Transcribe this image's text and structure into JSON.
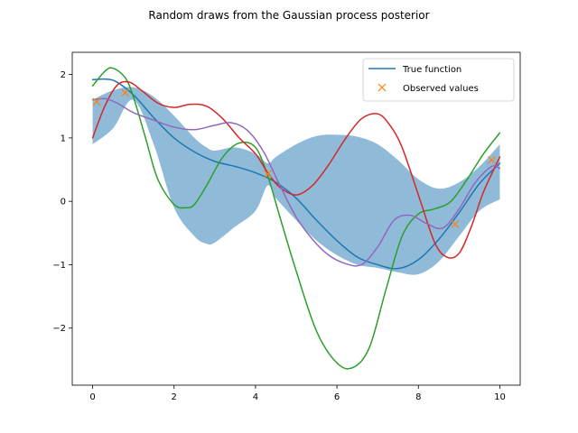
{
  "chart_data": {
    "type": "line",
    "title": "Random draws from the Gaussian process posterior",
    "xlabel": "",
    "ylabel": "",
    "xlim": [
      -0.5,
      10.5
    ],
    "ylim": [
      -2.9,
      2.35
    ],
    "xticks": [
      0,
      2,
      4,
      6,
      8,
      10
    ],
    "xtick_labels": [
      "0",
      "2",
      "4",
      "6",
      "8",
      "10"
    ],
    "yticks": [
      -2,
      -1,
      0,
      1,
      2
    ],
    "ytick_labels": [
      "−2",
      "−1",
      "0",
      "1",
      "2"
    ],
    "grid": false,
    "legend": {
      "position": "upper right",
      "entries": [
        "True function",
        "Observed values"
      ]
    },
    "colors": {
      "true_function": "#1f77b4",
      "observed": "#ff7f0e",
      "band": "#8fbbd9",
      "sample_1": "#2ca02c",
      "sample_2": "#d62728",
      "sample_3": "#9467bd"
    },
    "band": {
      "x": [
        0,
        0.5,
        1.0,
        1.5,
        2.0,
        2.5,
        2.8,
        3.0,
        3.5,
        4.0,
        4.3,
        4.5,
        5.0,
        5.5,
        6.0,
        6.5,
        7.0,
        7.5,
        8.0,
        8.5,
        9.0,
        9.5,
        10.0
      ],
      "upper": [
        1.6,
        1.75,
        1.8,
        1.65,
        1.35,
        1.0,
        0.85,
        0.8,
        0.85,
        0.75,
        0.6,
        0.7,
        0.9,
        1.03,
        1.05,
        1.02,
        0.9,
        0.65,
        0.35,
        0.2,
        0.3,
        0.55,
        0.9
      ],
      "lower": [
        0.9,
        1.15,
        1.6,
        0.9,
        -0.1,
        -0.55,
        -0.67,
        -0.65,
        -0.4,
        -0.15,
        0.25,
        0.05,
        -0.3,
        -0.62,
        -0.85,
        -1.0,
        -1.05,
        -1.12,
        -1.15,
        -0.95,
        -0.55,
        -0.15,
        0.03
      ]
    },
    "series": [
      {
        "name": "True function",
        "style": "line",
        "x": [
          0,
          0.5,
          1.0,
          1.5,
          2.0,
          2.5,
          3.0,
          3.5,
          4.0,
          4.5,
          5.0,
          5.5,
          6.0,
          6.5,
          7.0,
          7.5,
          8.0,
          8.5,
          9.0,
          9.5,
          10.0
        ],
        "y": [
          1.92,
          1.91,
          1.68,
          1.32,
          1.0,
          0.78,
          0.63,
          0.55,
          0.45,
          0.3,
          0.05,
          -0.3,
          -0.62,
          -0.88,
          -1.0,
          -1.06,
          -0.92,
          -0.6,
          -0.18,
          0.28,
          0.6
        ]
      },
      {
        "name": "Observed values",
        "style": "marker",
        "x": [
          0.1,
          0.8,
          4.3,
          8.9,
          9.8
        ],
        "y": [
          1.57,
          1.71,
          0.43,
          -0.36,
          0.65
        ]
      },
      {
        "style": "line",
        "x": [
          0,
          0.3,
          0.5,
          0.8,
          1.0,
          1.3,
          1.6,
          2.0,
          2.3,
          2.5,
          2.8,
          3.2,
          3.6,
          4.0,
          4.3,
          4.6,
          5.0,
          5.5,
          6.0,
          6.4,
          6.8,
          7.2,
          7.6,
          8.0,
          8.4,
          8.8,
          9.2,
          9.6,
          10.0
        ],
        "y": [
          1.82,
          2.05,
          2.1,
          1.95,
          1.65,
          1.0,
          0.35,
          -0.05,
          -0.1,
          -0.05,
          0.25,
          0.7,
          0.92,
          0.85,
          0.4,
          -0.25,
          -1.1,
          -2.05,
          -2.55,
          -2.62,
          -2.3,
          -1.4,
          -0.55,
          -0.2,
          -0.12,
          0.0,
          0.35,
          0.75,
          1.08
        ]
      },
      {
        "style": "line",
        "x": [
          0,
          0.3,
          0.6,
          0.9,
          1.2,
          1.6,
          2.0,
          2.4,
          2.8,
          3.2,
          3.6,
          4.0,
          4.3,
          4.6,
          5.0,
          5.4,
          5.8,
          6.2,
          6.6,
          7.0,
          7.3,
          7.6,
          8.0,
          8.4,
          8.7,
          9.0,
          9.3,
          9.6,
          10.0
        ],
        "y": [
          1.0,
          1.5,
          1.83,
          1.88,
          1.75,
          1.55,
          1.48,
          1.53,
          1.5,
          1.3,
          1.0,
          0.75,
          0.45,
          0.22,
          0.1,
          0.25,
          0.58,
          0.98,
          1.3,
          1.38,
          1.2,
          0.85,
          0.1,
          -0.65,
          -0.88,
          -0.82,
          -0.4,
          0.15,
          0.7
        ]
      },
      {
        "style": "line",
        "x": [
          0,
          0.3,
          0.6,
          1.0,
          1.5,
          2.0,
          2.5,
          3.0,
          3.4,
          3.8,
          4.2,
          4.6,
          5.0,
          5.4,
          5.8,
          6.2,
          6.6,
          7.0,
          7.4,
          7.8,
          8.2,
          8.6,
          9.0,
          9.4,
          9.8,
          10.0
        ],
        "y": [
          1.6,
          1.62,
          1.55,
          1.4,
          1.28,
          1.17,
          1.13,
          1.2,
          1.24,
          1.12,
          0.78,
          0.25,
          -0.25,
          -0.6,
          -0.85,
          -0.98,
          -1.0,
          -0.72,
          -0.3,
          -0.22,
          -0.35,
          -0.42,
          -0.12,
          0.3,
          0.55,
          0.52
        ]
      }
    ]
  }
}
